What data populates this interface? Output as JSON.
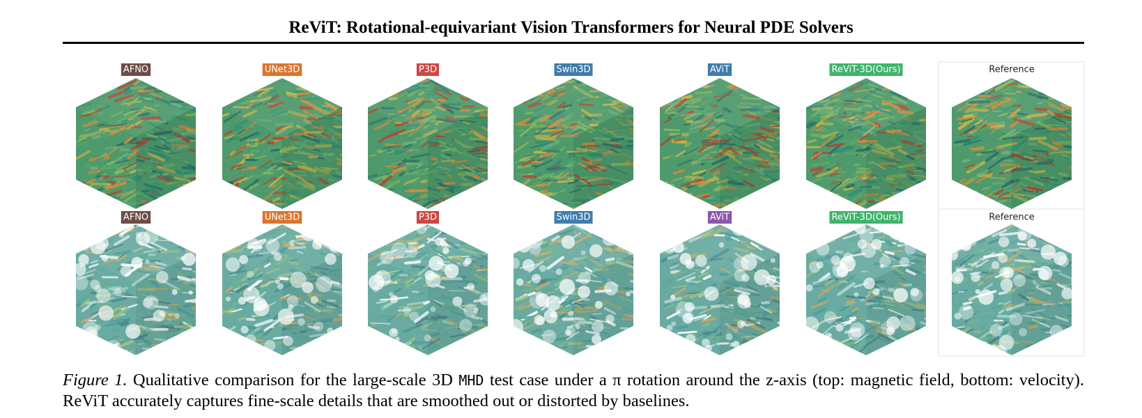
{
  "header": {
    "title": "ReViT: Rotational-equivariant Vision Transformers for Neural PDE Solvers"
  },
  "rows": [
    {
      "labels": [
        "AFNO",
        "UNet3D",
        "P3D",
        "Swin3D",
        "AViT",
        "ReViT-3D(Ours)",
        "Reference"
      ]
    },
    {
      "labels": [
        "AFNO",
        "UNet3D",
        "P3D",
        "Swin3D",
        "AViT",
        "ReViT-3D(Ours)",
        "Reference"
      ]
    }
  ],
  "caption": {
    "label": "Figure 1.",
    "text_before": "Qualitative comparison for the large-scale 3D",
    "code": "MHD",
    "text_after": "test case under a π rotation around the z-axis (top: magnetic field, bottom: velocity). ReViT accurately captures fine-scale details that are smoothed out or distorted by baselines."
  }
}
